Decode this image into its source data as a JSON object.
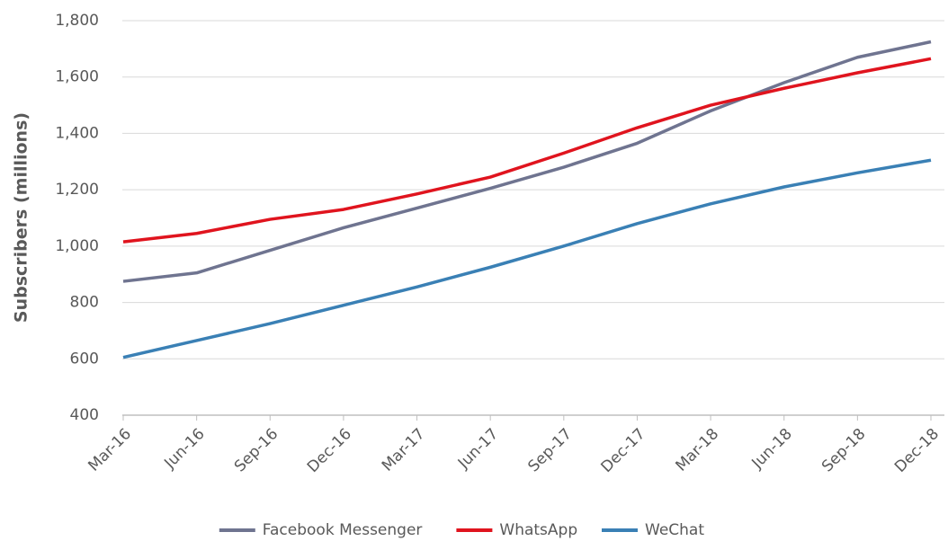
{
  "chart_data": {
    "type": "line",
    "y_label": "Subscribers (millions)",
    "categories": [
      "Mar-16",
      "Jun-16",
      "Sep-16",
      "Dec-16",
      "Mar-17",
      "Jun-17",
      "Sep-17",
      "Dec-17",
      "Mar-18",
      "Jun-18",
      "Sep-18",
      "Dec-18"
    ],
    "series": [
      {
        "name": "Facebook Messenger",
        "color": "#6f7490",
        "values": [
          875,
          905,
          985,
          1065,
          1135,
          1205,
          1280,
          1365,
          1480,
          1580,
          1670,
          1725
        ]
      },
      {
        "name": "WhatsApp",
        "color": "#e0141e",
        "values": [
          1015,
          1045,
          1095,
          1130,
          1185,
          1245,
          1330,
          1420,
          1500,
          1560,
          1615,
          1665
        ]
      },
      {
        "name": "WeChat",
        "color": "#3a80b5",
        "values": [
          605,
          665,
          725,
          790,
          855,
          925,
          1000,
          1080,
          1150,
          1210,
          1260,
          1305
        ]
      }
    ],
    "ylim": [
      400,
      1800
    ],
    "yticks": [
      400,
      600,
      800,
      {
        "value": 1000,
        "label": "1,000"
      },
      {
        "value": 1200,
        "label": "1,200"
      },
      {
        "value": 1400,
        "label": "1,400"
      },
      {
        "value": 1600,
        "label": "1,600"
      },
      {
        "value": 1800,
        "label": "1,800"
      }
    ],
    "grid": true,
    "legend": "bottom"
  }
}
